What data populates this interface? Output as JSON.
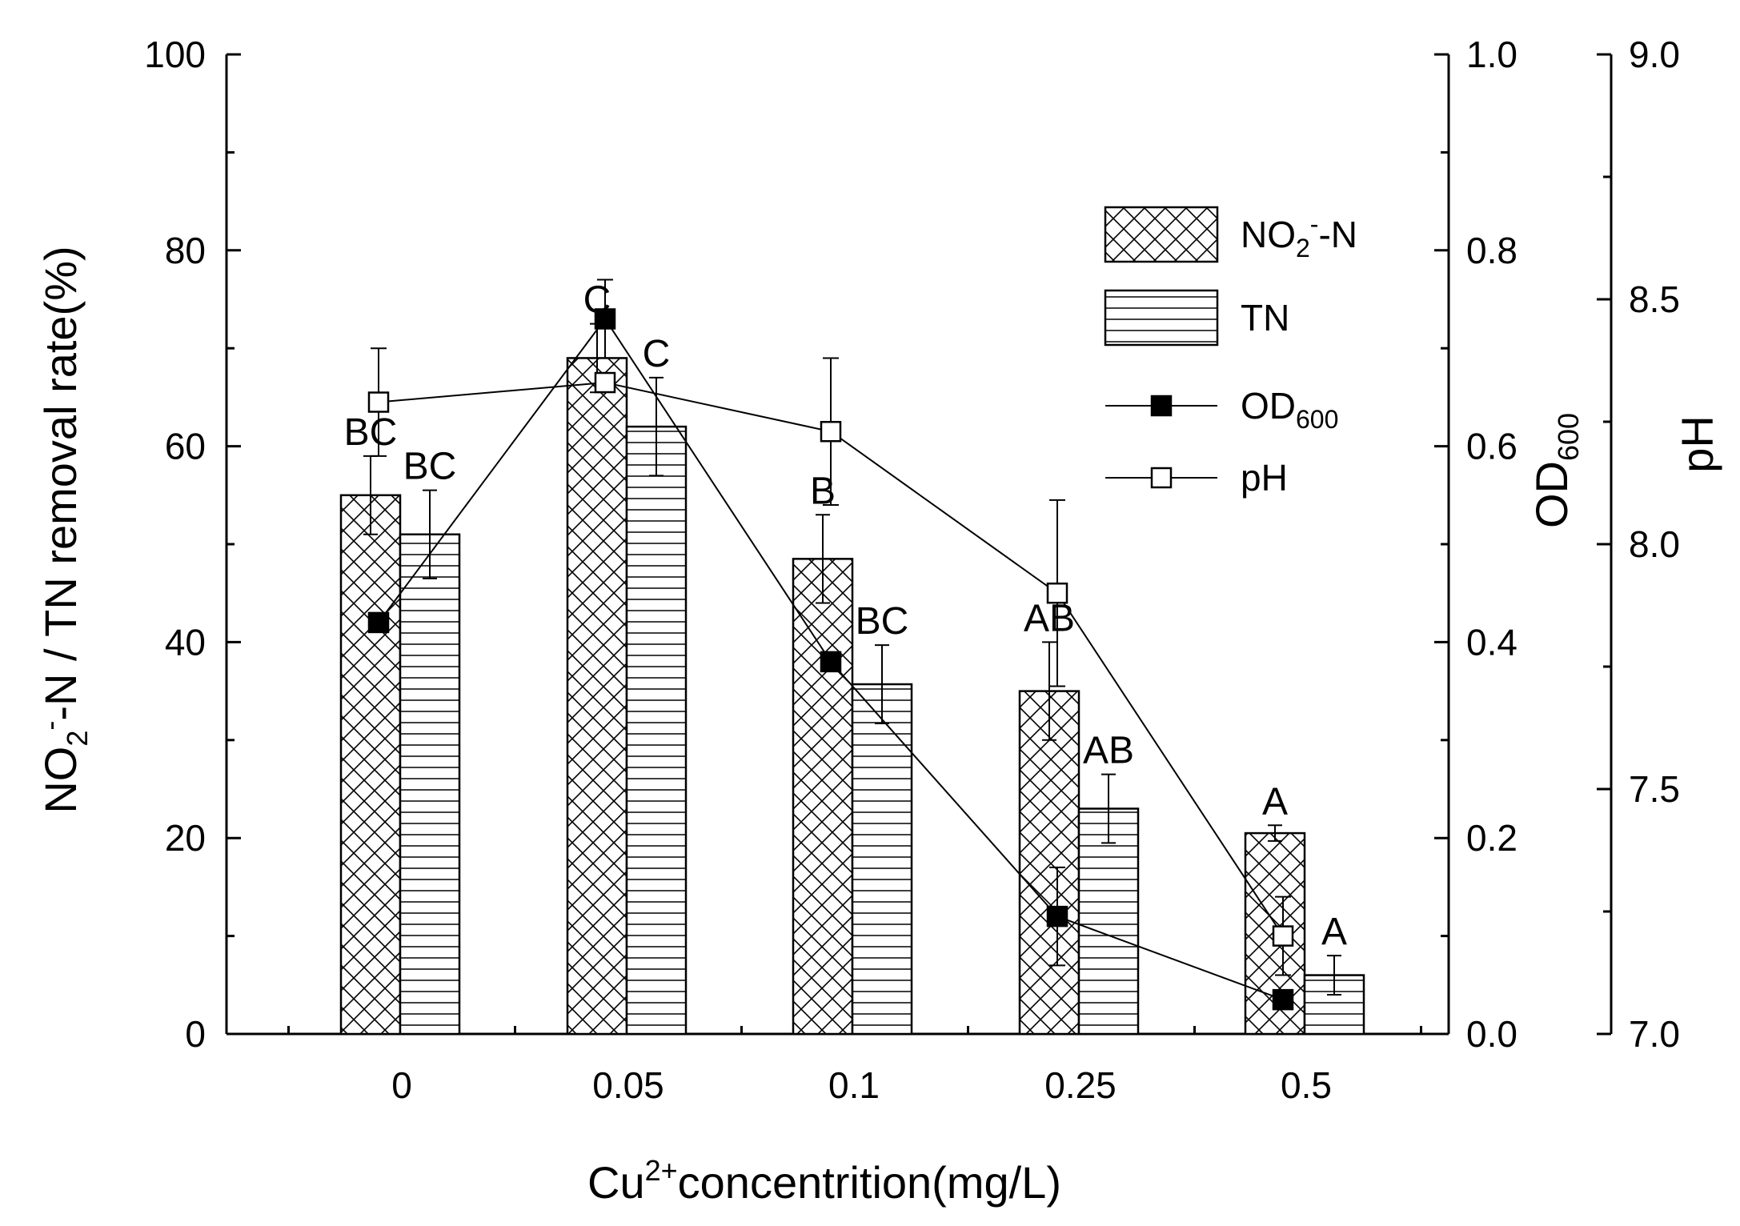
{
  "chart_data": {
    "type": "bar",
    "categories": [
      "0",
      "0.05",
      "0.1",
      "0.25",
      "0.5"
    ],
    "xlabel": {
      "main": "Cu",
      "sup": "2+",
      "rest": "concentrition(mg/L)"
    },
    "ylabel_left": {
      "t1": "NO",
      "sub": "2",
      "sup": "-",
      "t2": "-N / TN removal rate(%)"
    },
    "ylabel_right_od": {
      "t1": "OD",
      "sub": "600"
    },
    "ylabel_right_ph": "pH",
    "ylim_left": [
      0,
      100
    ],
    "ylim_od": [
      0.0,
      1.0
    ],
    "ylim_ph": [
      7.0,
      9.0
    ],
    "ticks_left": [
      "0",
      "20",
      "40",
      "60",
      "80",
      "100"
    ],
    "ticks_od": [
      "0.0",
      "0.2",
      "0.4",
      "0.6",
      "0.8",
      "1.0"
    ],
    "ticks_ph": [
      "7.0",
      "7.5",
      "8.0",
      "8.5",
      "9.0"
    ],
    "bar_series": [
      {
        "name": "NO2- -N",
        "pattern": "crosshatch",
        "values": [
          55,
          69,
          48.5,
          35,
          20.5
        ],
        "errors": [
          4,
          3.5,
          4.5,
          5,
          0.8
        ],
        "labels": [
          "BC",
          "C",
          "B",
          "AB",
          "A"
        ]
      },
      {
        "name": "TN",
        "pattern": "horizontal",
        "values": [
          51,
          62,
          35.7,
          23,
          6
        ],
        "errors": [
          4.5,
          5,
          4,
          3.5,
          2
        ],
        "labels": [
          "BC",
          "C",
          "BC",
          "AB",
          "A"
        ]
      }
    ],
    "line_series": [
      {
        "name": "OD600",
        "axis": "od",
        "marker": "filled-square",
        "values": [
          0.42,
          0.73,
          0.38,
          0.12,
          0.035
        ],
        "errors": [
          0.0,
          0.04,
          0.0,
          0.05,
          0.0
        ]
      },
      {
        "name": "pH",
        "axis": "ph",
        "marker": "open-square",
        "values": [
          8.29,
          8.33,
          8.23,
          7.9,
          7.2
        ],
        "errors": [
          0.11,
          0.0,
          0.15,
          0.19,
          0.08
        ]
      }
    ],
    "legend": {
      "position": "top-right",
      "entries": [
        {
          "t1": "NO",
          "sub": "2",
          "sup": "-",
          "t2": "-N"
        },
        {
          "t1": "TN"
        },
        {
          "t1": "OD",
          "sub": "600"
        },
        {
          "t1": "pH"
        }
      ]
    },
    "colors": {
      "ink": "#000000",
      "background": "#ffffff",
      "open_marker_fill": "#ffffff"
    }
  }
}
